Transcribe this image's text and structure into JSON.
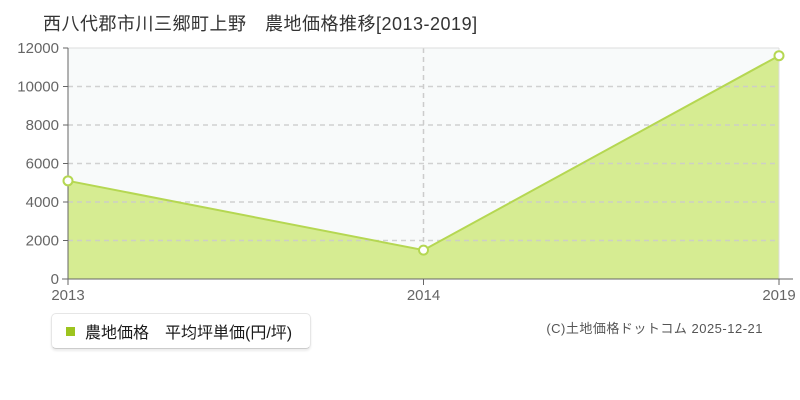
{
  "title": "西八代郡市川三郷町上野　農地価格推移[2013-2019]",
  "legend": {
    "label": "農地価格　平均坪単価(円/坪)",
    "marker_color": "#9dc41f"
  },
  "footer": {
    "copyright": "(C)土地価格ドットコム 2025-12-21"
  },
  "chart_data": {
    "type": "area",
    "title": "西八代郡市川三郷町上野 農地価格推移[2013-2019]",
    "categories": [
      "2013",
      "2014",
      "2019"
    ],
    "series": [
      {
        "name": "農地価格 平均坪単価(円/坪)",
        "values": [
          5100,
          1500,
          11600
        ]
      }
    ],
    "xlabel": "",
    "ylabel": "",
    "unit": "円/坪",
    "ylim": [
      0,
      12000
    ],
    "yticks": [
      0,
      2000,
      4000,
      6000,
      8000,
      10000,
      12000
    ],
    "grid": "horizontal-dashed-plus-vertical-at-interior-ticks",
    "legend_position": "bottom-left",
    "colors": {
      "area_fill": "#d6ec92",
      "line": "#b5d752",
      "marker_fill": "#ffffff",
      "marker_stroke": "#b5d752",
      "plot_bg": "#f8fafa",
      "grid": "#cccccc",
      "axis": "#666666",
      "border": "#dddddd",
      "tick_label": "#666666"
    }
  }
}
